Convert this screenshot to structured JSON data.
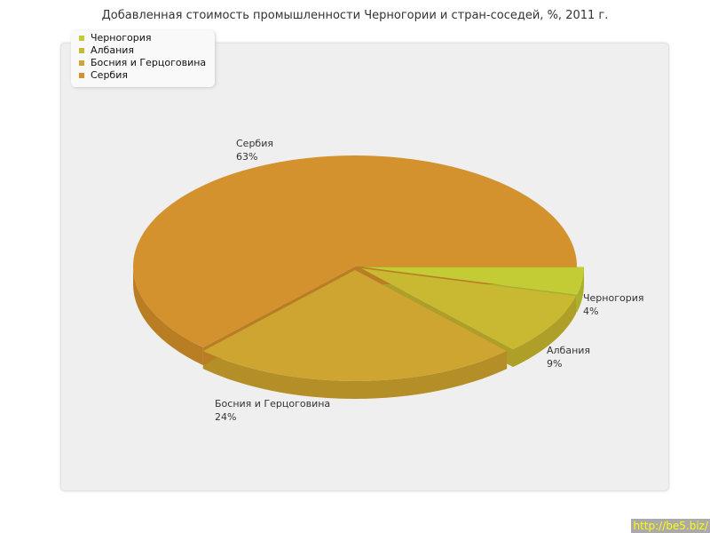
{
  "chart_data": {
    "type": "pie",
    "title": "Добавленная стоимость промышленности Черногории и стран-соседей, %, 2011 г.",
    "three_d": true,
    "legend_position": "top-left",
    "categories": [
      "Черногория",
      "Албания",
      "Босния и Герцоговина",
      "Сербия"
    ],
    "values": [
      4,
      9,
      24,
      63
    ],
    "labels": [
      "4%",
      "9%",
      "24%",
      "63%"
    ],
    "colors": [
      "#c3cb35",
      "#c8b832",
      "#cfa532",
      "#d4922e"
    ],
    "side_colors": [
      "#a9b02a",
      "#ad9f28",
      "#b48f28",
      "#b97e24"
    ]
  },
  "credit": "http://be5.biz/"
}
